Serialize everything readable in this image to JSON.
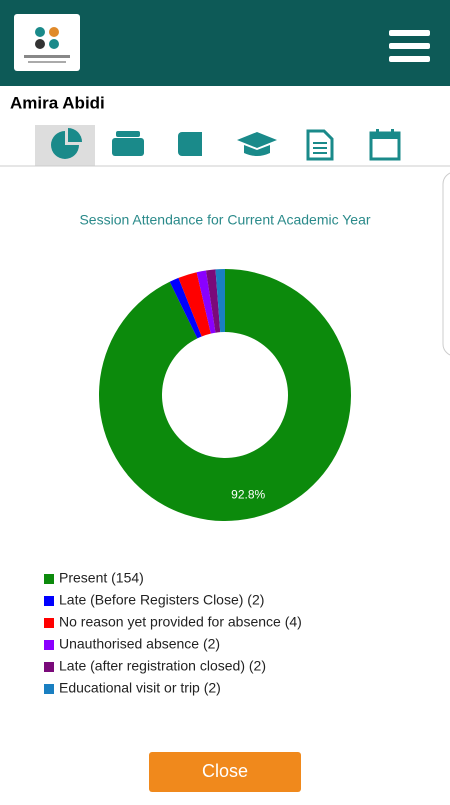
{
  "user": {
    "name": "Amira Abidi"
  },
  "chart_data": {
    "type": "donut",
    "title": "Session Attendance for Current Academic Year",
    "categories": [
      "Present (154)",
      "Late (Before Registers Close) (2)",
      "No reason yet provided for absence (4)",
      "Unauthorised absence (2)",
      "Late (after registration closed) (2)",
      "Educational visit or trip (2)"
    ],
    "values": [
      154,
      2,
      4,
      2,
      2,
      2
    ],
    "value_labels": [
      "92.8%",
      null,
      null,
      null,
      null,
      null
    ],
    "colors": [
      "#0c8a0c",
      "#0000ff",
      "#ff0000",
      "#8a00ff",
      "#7a0a7a",
      "#1a7fc1"
    ]
  },
  "button": {
    "label": "Close"
  }
}
